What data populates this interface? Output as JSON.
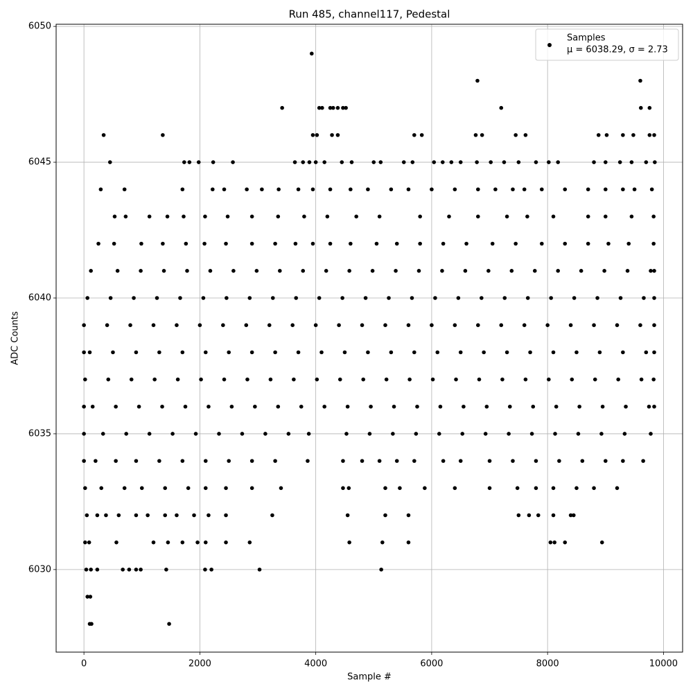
{
  "chart_data": {
    "type": "scatter",
    "title": "Run 485, channel117, Pedestal",
    "x_label": "Sample #",
    "y_label": "ADC Counts",
    "xlim": [
      -480,
      10330
    ],
    "ylim": [
      6026.96,
      6050.08
    ],
    "xticks": [
      0,
      2000,
      4000,
      6000,
      8000,
      10000
    ],
    "yticks": [
      6030,
      6035,
      6040,
      6045,
      6050
    ],
    "grid": true,
    "legend": "upper right",
    "stats": "μ = 6038.29, σ = 2.73",
    "x": [
      0,
      400,
      800,
      1200,
      1600,
      2000,
      2400,
      2800,
      3200,
      3600,
      4000,
      4400,
      4800,
      5200,
      5600,
      6000,
      6400,
      6800,
      7200,
      7600,
      8000,
      8400,
      8800,
      9200,
      9600,
      9840,
      60,
      460,
      860,
      1260,
      1660,
      2060,
      2460,
      2860,
      3260,
      3660,
      4060,
      4460,
      4860,
      5260,
      5660,
      6060,
      6460,
      6860,
      7260,
      7660,
      8060,
      8460,
      8860,
      9260,
      9660,
      9840,
      0,
      100,
      500,
      900,
      1300,
      1700,
      2100,
      2500,
      2900,
      3300,
      3700,
      4100,
      4500,
      4900,
      5300,
      5700,
      6100,
      6500,
      6900,
      7300,
      7700,
      8100,
      8500,
      8900,
      9300,
      9700,
      9840,
      20,
      420,
      820,
      1220,
      1620,
      2020,
      2420,
      2820,
      3220,
      3620,
      4020,
      4420,
      4820,
      5220,
      5620,
      6020,
      6420,
      6820,
      7220,
      7620,
      8020,
      8420,
      8820,
      9220,
      9620,
      9830,
      0,
      150,
      550,
      950,
      1350,
      1750,
      2150,
      2550,
      2950,
      3350,
      3750,
      4150,
      4550,
      4950,
      5350,
      5750,
      6150,
      6550,
      6950,
      7350,
      7750,
      8150,
      8550,
      8950,
      9350,
      9750,
      9840,
      120,
      580,
      980,
      1380,
      1780,
      2180,
      2580,
      2980,
      3380,
      3780,
      4180,
      4580,
      4980,
      5380,
      5780,
      6180,
      6580,
      6980,
      7380,
      7780,
      8180,
      8580,
      8980,
      9380,
      9780,
      9840,
      0,
      330,
      730,
      1130,
      1530,
      1930,
      2330,
      2730,
      3130,
      3530,
      3880,
      4530,
      4930,
      5330,
      5730,
      6130,
      6530,
      6930,
      7330,
      7730,
      8130,
      8530,
      8930,
      9330,
      9780,
      250,
      520,
      990,
      1360,
      1760,
      2080,
      2450,
      2900,
      3300,
      3650,
      3950,
      4250,
      4600,
      5050,
      5400,
      5800,
      6200,
      6600,
      7050,
      7450,
      7900,
      8300,
      8700,
      9050,
      9400,
      9830,
      530,
      720,
      1130,
      1440,
      1720,
      2090,
      2480,
      2900,
      3350,
      3800,
      4200,
      4700,
      5100,
      5800,
      6300,
      6800,
      7300,
      7650,
      8100,
      8700,
      9000,
      9450,
      9830,
      290,
      700,
      1700,
      2220,
      2420,
      2810,
      3070,
      3360,
      3700,
      3950,
      4250,
      4600,
      4900,
      5300,
      5600,
      6000,
      6400,
      6800,
      7100,
      7400,
      7600,
      7900,
      8300,
      8700,
      9000,
      9300,
      9500,
      9800,
      450,
      1730,
      1820,
      1980,
      2230,
      2570,
      3640,
      3780,
      3890,
      4000,
      4150,
      4450,
      4620,
      5000,
      5120,
      5520,
      5670,
      6040,
      6190,
      6340,
      6500,
      6780,
      7020,
      7250,
      7500,
      7800,
      8020,
      8180,
      8800,
      9000,
      9250,
      9450,
      9700,
      9850,
      340,
      1360,
      3950,
      4020,
      4280,
      4380,
      5700,
      5830,
      6760,
      6870,
      7450,
      7620,
      8880,
      9020,
      9300,
      9480,
      9760,
      9840,
      3420,
      4060,
      4110,
      4250,
      4300,
      4380,
      4470,
      4520,
      7200,
      9610,
      9760,
      6790,
      9600,
      3930,
      0,
      200,
      550,
      900,
      1300,
      1700,
      2100,
      2500,
      2900,
      3300,
      3860,
      4470,
      4800,
      5100,
      5400,
      5700,
      6200,
      6500,
      7000,
      7400,
      7800,
      8200,
      8600,
      9000,
      9300,
      9650,
      20,
      300,
      700,
      1000,
      1400,
      1800,
      2100,
      2450,
      2900,
      3400,
      4470,
      4570,
      5200,
      5450,
      5880,
      6400,
      7000,
      7480,
      7800,
      8100,
      8500,
      8800,
      9200,
      50,
      230,
      380,
      600,
      900,
      1100,
      1400,
      1600,
      1900,
      2150,
      2450,
      3250,
      4550,
      5200,
      5600,
      7500,
      7680,
      7840,
      8100,
      8400,
      8450,
      20,
      90,
      560,
      1200,
      1450,
      1700,
      1960,
      2100,
      2450,
      2860,
      4580,
      5150,
      5600,
      8050,
      8120,
      8300,
      8940,
      40,
      120,
      230,
      670,
      780,
      900,
      980,
      1420,
      2090,
      2200,
      3030,
      5130,
      60,
      110,
      100,
      130,
      1470
    ],
    "series": [
      {
        "name": "Samples",
        "color": "#000000",
        "values": [
          6039,
          6039,
          6039,
          6039,
          6039,
          6039,
          6039,
          6039,
          6039,
          6039,
          6039,
          6039,
          6039,
          6039,
          6039,
          6039,
          6039,
          6039,
          6039,
          6039,
          6039,
          6039,
          6039,
          6039,
          6039,
          6039,
          6040,
          6040,
          6040,
          6040,
          6040,
          6040,
          6040,
          6040,
          6040,
          6040,
          6040,
          6040,
          6040,
          6040,
          6040,
          6040,
          6040,
          6040,
          6040,
          6040,
          6040,
          6040,
          6040,
          6040,
          6040,
          6040,
          6038,
          6038,
          6038,
          6038,
          6038,
          6038,
          6038,
          6038,
          6038,
          6038,
          6038,
          6038,
          6038,
          6038,
          6038,
          6038,
          6038,
          6038,
          6038,
          6038,
          6038,
          6038,
          6038,
          6038,
          6038,
          6038,
          6038,
          6037,
          6037,
          6037,
          6037,
          6037,
          6037,
          6037,
          6037,
          6037,
          6037,
          6037,
          6037,
          6037,
          6037,
          6037,
          6037,
          6037,
          6037,
          6037,
          6037,
          6037,
          6037,
          6037,
          6037,
          6037,
          6037,
          6036,
          6036,
          6036,
          6036,
          6036,
          6036,
          6036,
          6036,
          6036,
          6036,
          6036,
          6036,
          6036,
          6036,
          6036,
          6036,
          6036,
          6036,
          6036,
          6036,
          6036,
          6036,
          6036,
          6036,
          6036,
          6036,
          6036,
          6041,
          6041,
          6041,
          6041,
          6041,
          6041,
          6041,
          6041,
          6041,
          6041,
          6041,
          6041,
          6041,
          6041,
          6041,
          6041,
          6041,
          6041,
          6041,
          6041,
          6041,
          6041,
          6041,
          6041,
          6041,
          6041,
          6035,
          6035,
          6035,
          6035,
          6035,
          6035,
          6035,
          6035,
          6035,
          6035,
          6035,
          6035,
          6035,
          6035,
          6035,
          6035,
          6035,
          6035,
          6035,
          6035,
          6035,
          6035,
          6035,
          6035,
          6035,
          6042,
          6042,
          6042,
          6042,
          6042,
          6042,
          6042,
          6042,
          6042,
          6042,
          6042,
          6042,
          6042,
          6042,
          6042,
          6042,
          6042,
          6042,
          6042,
          6042,
          6042,
          6042,
          6042,
          6042,
          6042,
          6042,
          6043,
          6043,
          6043,
          6043,
          6043,
          6043,
          6043,
          6043,
          6043,
          6043,
          6043,
          6043,
          6043,
          6043,
          6043,
          6043,
          6043,
          6043,
          6043,
          6043,
          6043,
          6043,
          6043,
          6044,
          6044,
          6044,
          6044,
          6044,
          6044,
          6044,
          6044,
          6044,
          6044,
          6044,
          6044,
          6044,
          6044,
          6044,
          6044,
          6044,
          6044,
          6044,
          6044,
          6044,
          6044,
          6044,
          6044,
          6044,
          6044,
          6044,
          6044,
          6045,
          6045,
          6045,
          6045,
          6045,
          6045,
          6045,
          6045,
          6045,
          6045,
          6045,
          6045,
          6045,
          6045,
          6045,
          6045,
          6045,
          6045,
          6045,
          6045,
          6045,
          6045,
          6045,
          6045,
          6045,
          6045,
          6045,
          6045,
          6045,
          6045,
          6045,
          6045,
          6045,
          6045,
          6046,
          6046,
          6046,
          6046,
          6046,
          6046,
          6046,
          6046,
          6046,
          6046,
          6046,
          6046,
          6046,
          6046,
          6046,
          6046,
          6046,
          6046,
          6047,
          6047,
          6047,
          6047,
          6047,
          6047,
          6047,
          6047,
          6047,
          6047,
          6047,
          6048,
          6048,
          6049,
          6034,
          6034,
          6034,
          6034,
          6034,
          6034,
          6034,
          6034,
          6034,
          6034,
          6034,
          6034,
          6034,
          6034,
          6034,
          6034,
          6034,
          6034,
          6034,
          6034,
          6034,
          6034,
          6034,
          6034,
          6034,
          6034,
          6033,
          6033,
          6033,
          6033,
          6033,
          6033,
          6033,
          6033,
          6033,
          6033,
          6033,
          6033,
          6033,
          6033,
          6033,
          6033,
          6033,
          6033,
          6033,
          6033,
          6033,
          6033,
          6033,
          6032,
          6032,
          6032,
          6032,
          6032,
          6032,
          6032,
          6032,
          6032,
          6032,
          6032,
          6032,
          6032,
          6032,
          6032,
          6032,
          6032,
          6032,
          6032,
          6032,
          6032,
          6031,
          6031,
          6031,
          6031,
          6031,
          6031,
          6031,
          6031,
          6031,
          6031,
          6031,
          6031,
          6031,
          6031,
          6031,
          6031,
          6031,
          6030,
          6030,
          6030,
          6030,
          6030,
          6030,
          6030,
          6030,
          6030,
          6030,
          6030,
          6030,
          6029,
          6029,
          6028,
          6028,
          6028
        ]
      }
    ]
  }
}
